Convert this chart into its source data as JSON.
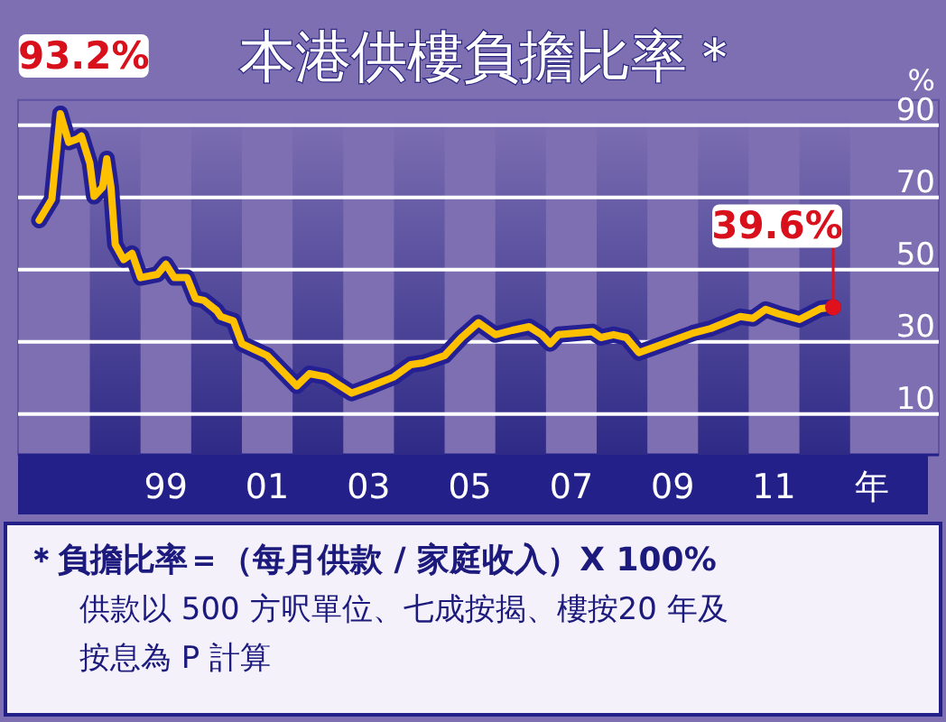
{
  "chart_data": {
    "type": "line",
    "title": "本港供樓負擔比率＊",
    "x": [
      "1997-01",
      "1997-04",
      "1997-06",
      "1997-08",
      "1997-10",
      "1997-11",
      "1998-01",
      "1998-02",
      "1998-04",
      "1998-05",
      "1998-06",
      "1998-07",
      "1998-09",
      "1998-11",
      "1999-01",
      "1999-05",
      "1999-07",
      "1999-09",
      "1999-12",
      "2000-02",
      "2000-04",
      "2000-07",
      "2000-08",
      "2000-11",
      "2001-01",
      "2001-07",
      "2002-02",
      "2002-05",
      "2002-09",
      "2003-03",
      "2003-07",
      "2004-01",
      "2004-05",
      "2004-08",
      "2005-01",
      "2005-05",
      "2005-09",
      "2006-01",
      "2006-05",
      "2006-09",
      "2006-12",
      "2007-02",
      "2007-04",
      "2007-12",
      "2008-02",
      "2008-05",
      "2008-08",
      "2008-11",
      "2009-03",
      "2009-12",
      "2010-04",
      "2010-11",
      "2011-02",
      "2011-05",
      "2011-08",
      "2012-01",
      "2012-06",
      "2012-09"
    ],
    "values": [
      63.7,
      69.5,
      93.2,
      85.3,
      86.2,
      87,
      79.5,
      70.3,
      72.8,
      80.7,
      72.8,
      57,
      52.8,
      54.5,
      47.8,
      48.7,
      51.5,
      47.8,
      47.8,
      42,
      41.5,
      38.7,
      37,
      35.8,
      29.5,
      26.2,
      17.8,
      21.2,
      20.3,
      15.8,
      17.5,
      20.3,
      23.7,
      24.2,
      26.2,
      31.2,
      35.3,
      32,
      33.2,
      34.2,
      32,
      29.5,
      32,
      32.8,
      31.2,
      32,
      31.2,
      27,
      28.7,
      32.5,
      33.7,
      37,
      36.5,
      39,
      37.8,
      36.2,
      39.2,
      39.6
    ],
    "color": "#ffc000",
    "xlabel": "年",
    "ylabel": "%",
    "xlim": [
      "1996-08",
      "2014-10"
    ],
    "ylim": [
      -1.3,
      97
    ],
    "xticks": [
      {
        "value": "1999-07",
        "label": "99"
      },
      {
        "value": "2001-07",
        "label": "01"
      },
      {
        "value": "2003-07",
        "label": "03"
      },
      {
        "value": "2005-07",
        "label": "05"
      },
      {
        "value": "2007-07",
        "label": "07"
      },
      {
        "value": "2009-07",
        "label": "09"
      },
      {
        "value": "2011-07",
        "label": "11"
      }
    ],
    "yticks": [
      10,
      30,
      50,
      70,
      90
    ],
    "grid": "y",
    "bands": [
      {
        "axis": "x",
        "from": "1998-01",
        "to": "1999-01",
        "color": "#2e2a86"
      },
      {
        "axis": "x",
        "from": "2000-01",
        "to": "2001-01",
        "color": "#2e2a86"
      },
      {
        "axis": "x",
        "from": "2002-01",
        "to": "2003-01",
        "color": "#2e2a86"
      },
      {
        "axis": "x",
        "from": "2004-01",
        "to": "2005-01",
        "color": "#2e2a86"
      },
      {
        "axis": "x",
        "from": "2006-01",
        "to": "2007-01",
        "color": "#2e2a86"
      },
      {
        "axis": "x",
        "from": "2008-01",
        "to": "2009-01",
        "color": "#2e2a86"
      },
      {
        "axis": "x",
        "from": "2010-01",
        "to": "2011-01",
        "color": "#2e2a86"
      },
      {
        "axis": "x",
        "from": "2012-01",
        "to": "2013-01",
        "color": "#2e2a86"
      }
    ],
    "annotations": [
      {
        "text": "93.2%",
        "x": "1997-06",
        "y": 93.2
      },
      {
        "text": "39.6%",
        "x": "2012-09",
        "y": 39.6
      },
      "＊負擔比率＝（每月供款 / 家庭收入）X 100%",
      "供款以 500 方呎單位、七成按揭、樓按20 年及",
      "按息為 P 計算"
    ]
  }
}
